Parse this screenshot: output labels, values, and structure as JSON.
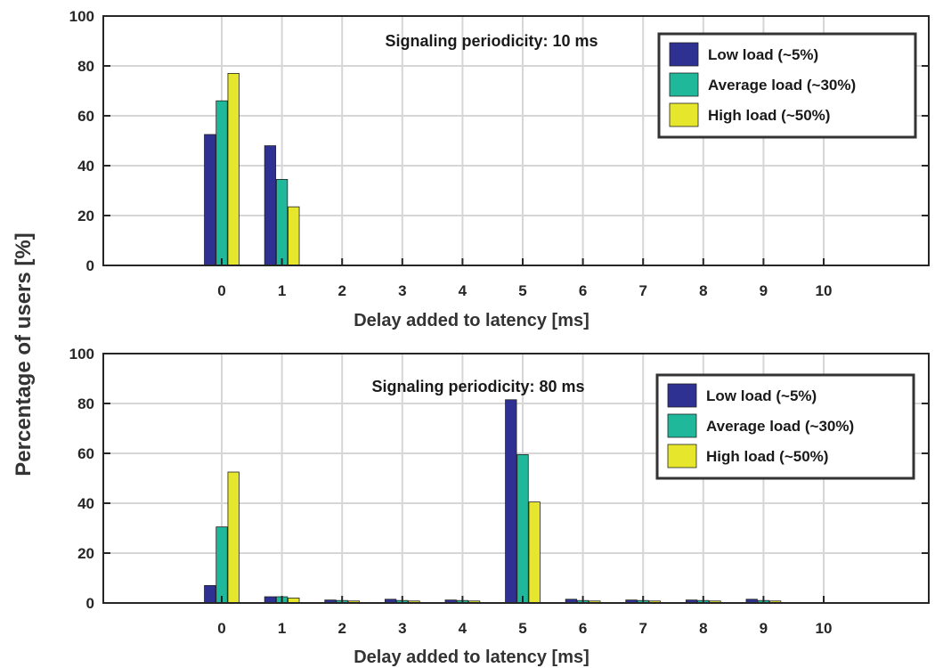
{
  "colors": {
    "low": "#2e3192",
    "average": "#1fb89a",
    "high": "#e6e62c",
    "grid": "#d6d6d6",
    "axis": "#262626"
  },
  "shared_ylabel": "Percentage of users [%]",
  "chart_data": [
    {
      "type": "bar",
      "annotation": "Signaling periodicity: 10 ms",
      "xlabel": "Delay added to latency [ms]",
      "ylabel": "",
      "ylim": [
        0,
        100
      ],
      "yticks": [
        "0",
        "20",
        "40",
        "60",
        "80",
        "100"
      ],
      "categories": [
        "0",
        "1",
        "2",
        "3",
        "4",
        "5",
        "6",
        "7",
        "8",
        "9",
        "10"
      ],
      "grid": true,
      "legend_position": "top-right",
      "series": [
        {
          "name": "Low load (~5%)",
          "color_key": "low",
          "values": [
            52.5,
            48,
            0,
            0,
            0,
            0,
            0,
            0,
            0,
            0,
            0
          ]
        },
        {
          "name": "Average load (~30%)",
          "color_key": "average",
          "values": [
            66,
            34.5,
            0,
            0,
            0,
            0,
            0,
            0,
            0,
            0,
            0
          ]
        },
        {
          "name": "High load (~50%)",
          "color_key": "high",
          "values": [
            77,
            23.5,
            0,
            0,
            0,
            0,
            0,
            0,
            0,
            0,
            0
          ]
        }
      ]
    },
    {
      "type": "bar",
      "annotation": "Signaling periodicity: 80 ms",
      "xlabel": "Delay added to latency [ms]",
      "ylabel": "",
      "ylim": [
        0,
        100
      ],
      "yticks": [
        "0",
        "20",
        "40",
        "60",
        "80",
        "100"
      ],
      "categories": [
        "0",
        "1",
        "2",
        "3",
        "4",
        "5",
        "6",
        "7",
        "8",
        "9",
        "10"
      ],
      "grid": true,
      "legend_position": "top-right",
      "series": [
        {
          "name": "Low load (~5%)",
          "color_key": "low",
          "values": [
            7,
            2.5,
            1.2,
            1.5,
            1.2,
            81.5,
            1.5,
            1.2,
            1.2,
            1.5,
            0
          ]
        },
        {
          "name": "Average load (~30%)",
          "color_key": "average",
          "values": [
            30.5,
            2.5,
            1,
            1,
            1,
            59.5,
            1,
            1,
            1,
            1,
            0
          ]
        },
        {
          "name": "High load (~50%)",
          "color_key": "high",
          "values": [
            52.5,
            2,
            0.8,
            0.8,
            0.8,
            40.5,
            0.8,
            0.8,
            0.8,
            0.8,
            0
          ]
        }
      ]
    }
  ]
}
